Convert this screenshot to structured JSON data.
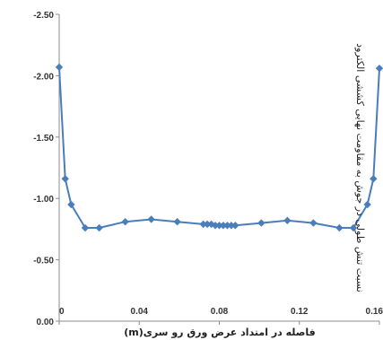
{
  "chart_data": {
    "type": "line",
    "xlabel": "فاصله در امتداد عرض ورق رو سری(m)",
    "ylabel": "نسبت تنش طولی در جوش به مقاومت نهایی کششی الکترود",
    "xlim": [
      0,
      0.16
    ],
    "ylim": [
      0,
      -2.5
    ],
    "x_ticks": [
      "0",
      "0.04",
      "0.08",
      "0.12",
      "0.16"
    ],
    "y_ticks": [
      "0.00",
      "-0.50",
      "-1.00",
      "-1.50",
      "-2.00",
      "-2.50"
    ],
    "grid": false,
    "legend": "none",
    "line_color": "#4a7ebb",
    "marker": "diamond",
    "series": [
      {
        "x": [
          0.0,
          0.003,
          0.006,
          0.013,
          0.02,
          0.033,
          0.046,
          0.059,
          0.072,
          0.074,
          0.076,
          0.078,
          0.08,
          0.082,
          0.084,
          0.086,
          0.088,
          0.101,
          0.114,
          0.127,
          0.14,
          0.147,
          0.154,
          0.157,
          0.16
        ],
        "y": [
          -2.07,
          -1.16,
          -0.95,
          -0.76,
          -0.76,
          -0.81,
          -0.83,
          -0.81,
          -0.79,
          -0.79,
          -0.79,
          -0.78,
          -0.78,
          -0.78,
          -0.78,
          -0.78,
          -0.78,
          -0.8,
          -0.82,
          -0.8,
          -0.76,
          -0.76,
          -0.95,
          -1.16,
          -2.06
        ]
      }
    ]
  }
}
